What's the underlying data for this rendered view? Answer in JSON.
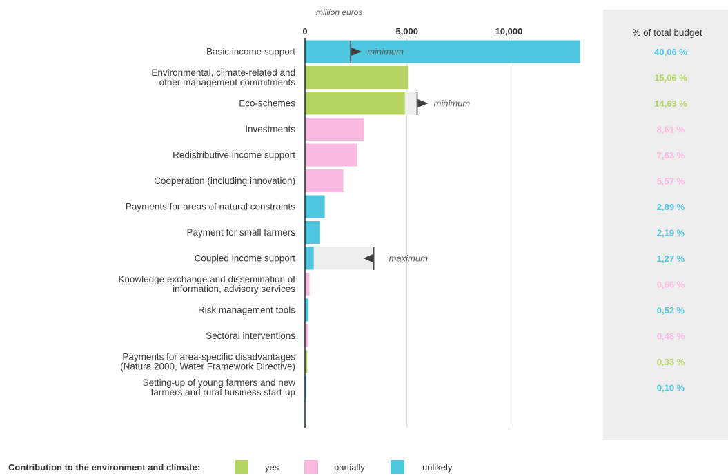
{
  "chart_data": {
    "type": "bar",
    "orientation": "horizontal",
    "unit_label": "million euros",
    "x_ticks": [
      0,
      5000,
      10000
    ],
    "x_tick_labels": [
      "0",
      "5,000",
      "10,000"
    ],
    "xlim": [
      0,
      13500
    ],
    "grid": true,
    "pct_header": "% of total budget",
    "categories": [
      {
        "label_lines": [
          "Basic income support"
        ],
        "value": 13500,
        "contribution": "unlikely",
        "pct": "40,06 %"
      },
      {
        "label_lines": [
          "Environmental, climate-related and",
          "other management commitments"
        ],
        "value": 5050,
        "contribution": "yes",
        "pct": "15,06 %"
      },
      {
        "label_lines": [
          "Eco-schemes"
        ],
        "value": 4900,
        "contribution": "yes",
        "pct": "14,63 %"
      },
      {
        "label_lines": [
          "Investments"
        ],
        "value": 2900,
        "contribution": "partially",
        "pct": "8,61 %"
      },
      {
        "label_lines": [
          "Redistributive income support"
        ],
        "value": 2570,
        "contribution": "partially",
        "pct": "7,63 %"
      },
      {
        "label_lines": [
          "Cooperation (including innovation)"
        ],
        "value": 1880,
        "contribution": "partially",
        "pct": "5,57 %"
      },
      {
        "label_lines": [
          "Payments for areas of natural constraints"
        ],
        "value": 970,
        "contribution": "unlikely",
        "pct": "2,89 %"
      },
      {
        "label_lines": [
          "Payment for small farmers"
        ],
        "value": 740,
        "contribution": "unlikely",
        "pct": "2,19 %"
      },
      {
        "label_lines": [
          "Coupled income support"
        ],
        "value": 430,
        "contribution": "unlikely",
        "pct": "1,27 %"
      },
      {
        "label_lines": [
          "Knowledge exchange and dissemination of",
          "information, advisory services"
        ],
        "value": 220,
        "contribution": "partially",
        "pct": "0,66 %"
      },
      {
        "label_lines": [
          "Risk management tools"
        ],
        "value": 175,
        "contribution": "unlikely",
        "pct": "0,52 %"
      },
      {
        "label_lines": [
          "Sectoral interventions"
        ],
        "value": 160,
        "contribution": "partially",
        "pct": "0,48 %"
      },
      {
        "label_lines": [
          "Payments for area-specific disadvantages",
          "(Natura 2000, Water Framework Directive)"
        ],
        "value": 110,
        "contribution": "yes",
        "pct": "0,33 %"
      },
      {
        "label_lines": [
          "Setting-up of young farmers and new",
          "farmers and rural business start-up"
        ],
        "value": 35,
        "contribution": "unlikely",
        "pct": "0,10 %"
      }
    ],
    "thresholds": [
      {
        "category_index": 0,
        "kind": "minimum",
        "label": "minimum",
        "value": 2240,
        "gap_to": null
      },
      {
        "category_index": 2,
        "kind": "minimum",
        "label": "minimum",
        "value": 5500,
        "gap_to": 5500
      },
      {
        "category_index": 8,
        "kind": "maximum",
        "label": "maximum",
        "value": 3370,
        "gap_to": 3370
      }
    ],
    "colors": {
      "yes": "#b5d461",
      "partially": "#fbb8e0",
      "unlikely": "#4ec6de",
      "gap": "#eeeeee",
      "panel": "#eeeeee",
      "grid": "#d4d4d4",
      "axis": "#1a2b3c",
      "marker": "#3d3d3d"
    },
    "legend": {
      "title": "Contribution to the environment and climate:",
      "items": [
        {
          "key": "yes",
          "label": "yes"
        },
        {
          "key": "partially",
          "label": "partially"
        },
        {
          "key": "unlikely",
          "label": "unlikely"
        }
      ]
    }
  }
}
